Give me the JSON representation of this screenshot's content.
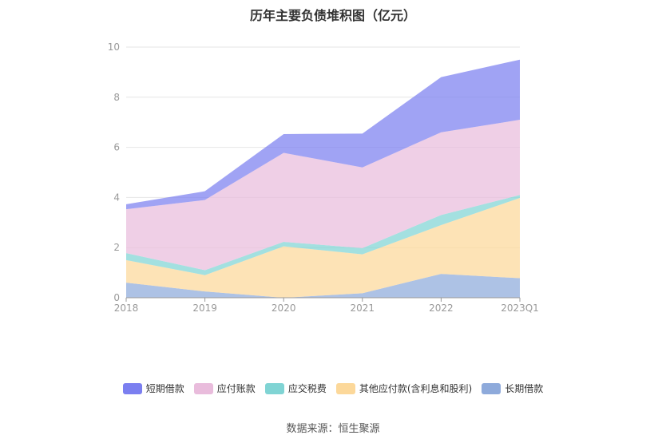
{
  "chart_data": {
    "type": "area",
    "stacked": true,
    "title": "历年主要负债堆积图（亿元）",
    "x": [
      "2018",
      "2019",
      "2020",
      "2021",
      "2022",
      "2023Q1"
    ],
    "ylim": [
      0,
      10
    ],
    "yticks": [
      0,
      2,
      4,
      6,
      8,
      10
    ],
    "grid": true,
    "legend_position": "bottom",
    "series": [
      {
        "name": "长期借款",
        "color": "#8eaadb",
        "values": [
          0.6,
          0.25,
          0.0,
          0.18,
          0.95,
          0.78
        ]
      },
      {
        "name": "其他应付款(含利息和股利)",
        "color": "#fcd89a",
        "values": [
          0.9,
          0.65,
          2.05,
          1.55,
          1.95,
          3.2
        ]
      },
      {
        "name": "应交税费",
        "color": "#80d4d4",
        "values": [
          0.28,
          0.2,
          0.18,
          0.25,
          0.4,
          0.12
        ]
      },
      {
        "name": "应付账款",
        "color": "#e9bcdc",
        "values": [
          1.75,
          2.8,
          3.55,
          3.22,
          3.3,
          3.0
        ]
      },
      {
        "name": "短期借款",
        "color": "#7b7ff0",
        "values": [
          0.2,
          0.35,
          0.75,
          1.35,
          2.2,
          2.4
        ]
      }
    ],
    "legend_order": [
      "短期借款",
      "应付账款",
      "应交税费",
      "其他应付款(含利息和股利)",
      "长期借款"
    ]
  },
  "source_text": "数据来源：恒生聚源"
}
